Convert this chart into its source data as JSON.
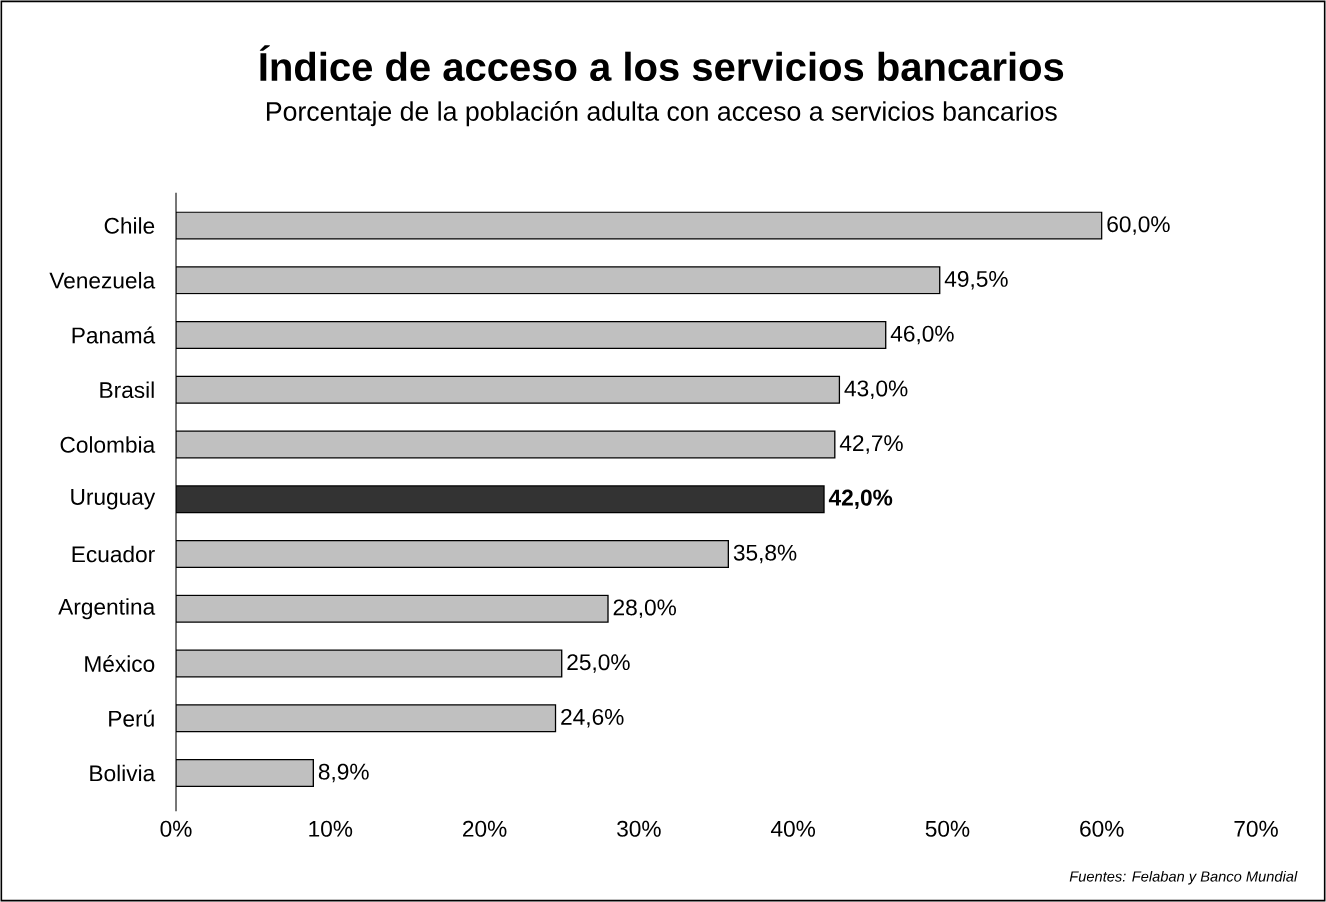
{
  "chart_data": {
    "type": "bar",
    "orientation": "horizontal",
    "title": "Índice de acceso a los servicios bancarios",
    "subtitle": "Porcentaje de la población adulta con acceso a servicios bancarios",
    "categories": [
      "Chile",
      "Venezuela",
      "Panamá",
      "Brasil",
      "Colombia",
      "Uruguay",
      "Ecuador",
      "Argentina",
      "México",
      "Perú",
      "Bolivia"
    ],
    "values": [
      60.0,
      49.5,
      46.0,
      43.0,
      42.7,
      42.0,
      35.8,
      28.0,
      25.0,
      24.6,
      8.9
    ],
    "colors": [
      "#c0c0c0",
      "#c0c0c0",
      "#c0c0c0",
      "#c0c0c0",
      "#c0c0c0",
      "#333333",
      "#c0c0c0",
      "#c0c0c0",
      "#c0c0c0",
      "#c0c0c0",
      "#c0c0c0"
    ],
    "value_labels": [
      "60,0%",
      "49,5%",
      "46,0%",
      "43,0%",
      "42,7%",
      "**42,0%**",
      "35,8%",
      "28,0%",
      "25,0%",
      "24,6%",
      "8,9%"
    ],
    "xlim": [
      0,
      70
    ],
    "xticks": [
      {
        "value": 0,
        "label": "0%"
      },
      {
        "value": 10,
        "label": "10%"
      },
      {
        "value": 20,
        "label": "20%"
      },
      {
        "value": 30,
        "label": "30%"
      },
      {
        "value": 40,
        "label": "40%"
      },
      {
        "value": 50,
        "label": "50%"
      },
      {
        "value": 60,
        "label": "60%"
      },
      {
        "value": 70,
        "label": "70%"
      }
    ],
    "annotations": [
      "Fuentes: Felaban y Banco Mundial"
    ]
  }
}
